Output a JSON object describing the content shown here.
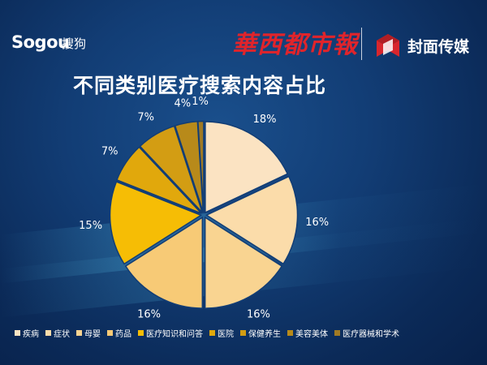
{
  "header": {
    "sogou_logo": "Sogou",
    "sogou_cn": "搜狗",
    "newspaper_logo": "華西都市報",
    "fengmian_text": "封面传媒"
  },
  "colors": {
    "background": "#123d75",
    "newspaper_red": "#e0242b",
    "fengmian_red": "#d8262d"
  },
  "chart_data": {
    "type": "pie",
    "title": "不同类别医疗搜索内容占比",
    "start_angle_deg": 0,
    "direction": "clockwise",
    "exploded": true,
    "legend_position": "bottom",
    "slices": [
      {
        "name": "疾病",
        "value": 18,
        "label": "18%",
        "color": "#fbe3c2"
      },
      {
        "name": "症状",
        "value": 16,
        "label": "16%",
        "color": "#fbdcaa"
      },
      {
        "name": "母婴",
        "value": 16,
        "label": "16%",
        "color": "#f9d491"
      },
      {
        "name": "药品",
        "value": 16,
        "label": "16%",
        "color": "#f7ca76"
      },
      {
        "name": "医疗知识和问答",
        "value": 15,
        "label": "15%",
        "color": "#f6bd05"
      },
      {
        "name": "医院",
        "value": 7,
        "label": "7%",
        "color": "#e1a80c"
      },
      {
        "name": "保健养生",
        "value": 7,
        "label": "7%",
        "color": "#d39d13"
      },
      {
        "name": "美容美体",
        "value": 4,
        "label": "4%",
        "color": "#b88a1a"
      },
      {
        "name": "医疗器械和学术",
        "value": 1,
        "label": "1%",
        "color": "#a07a24"
      }
    ]
  }
}
